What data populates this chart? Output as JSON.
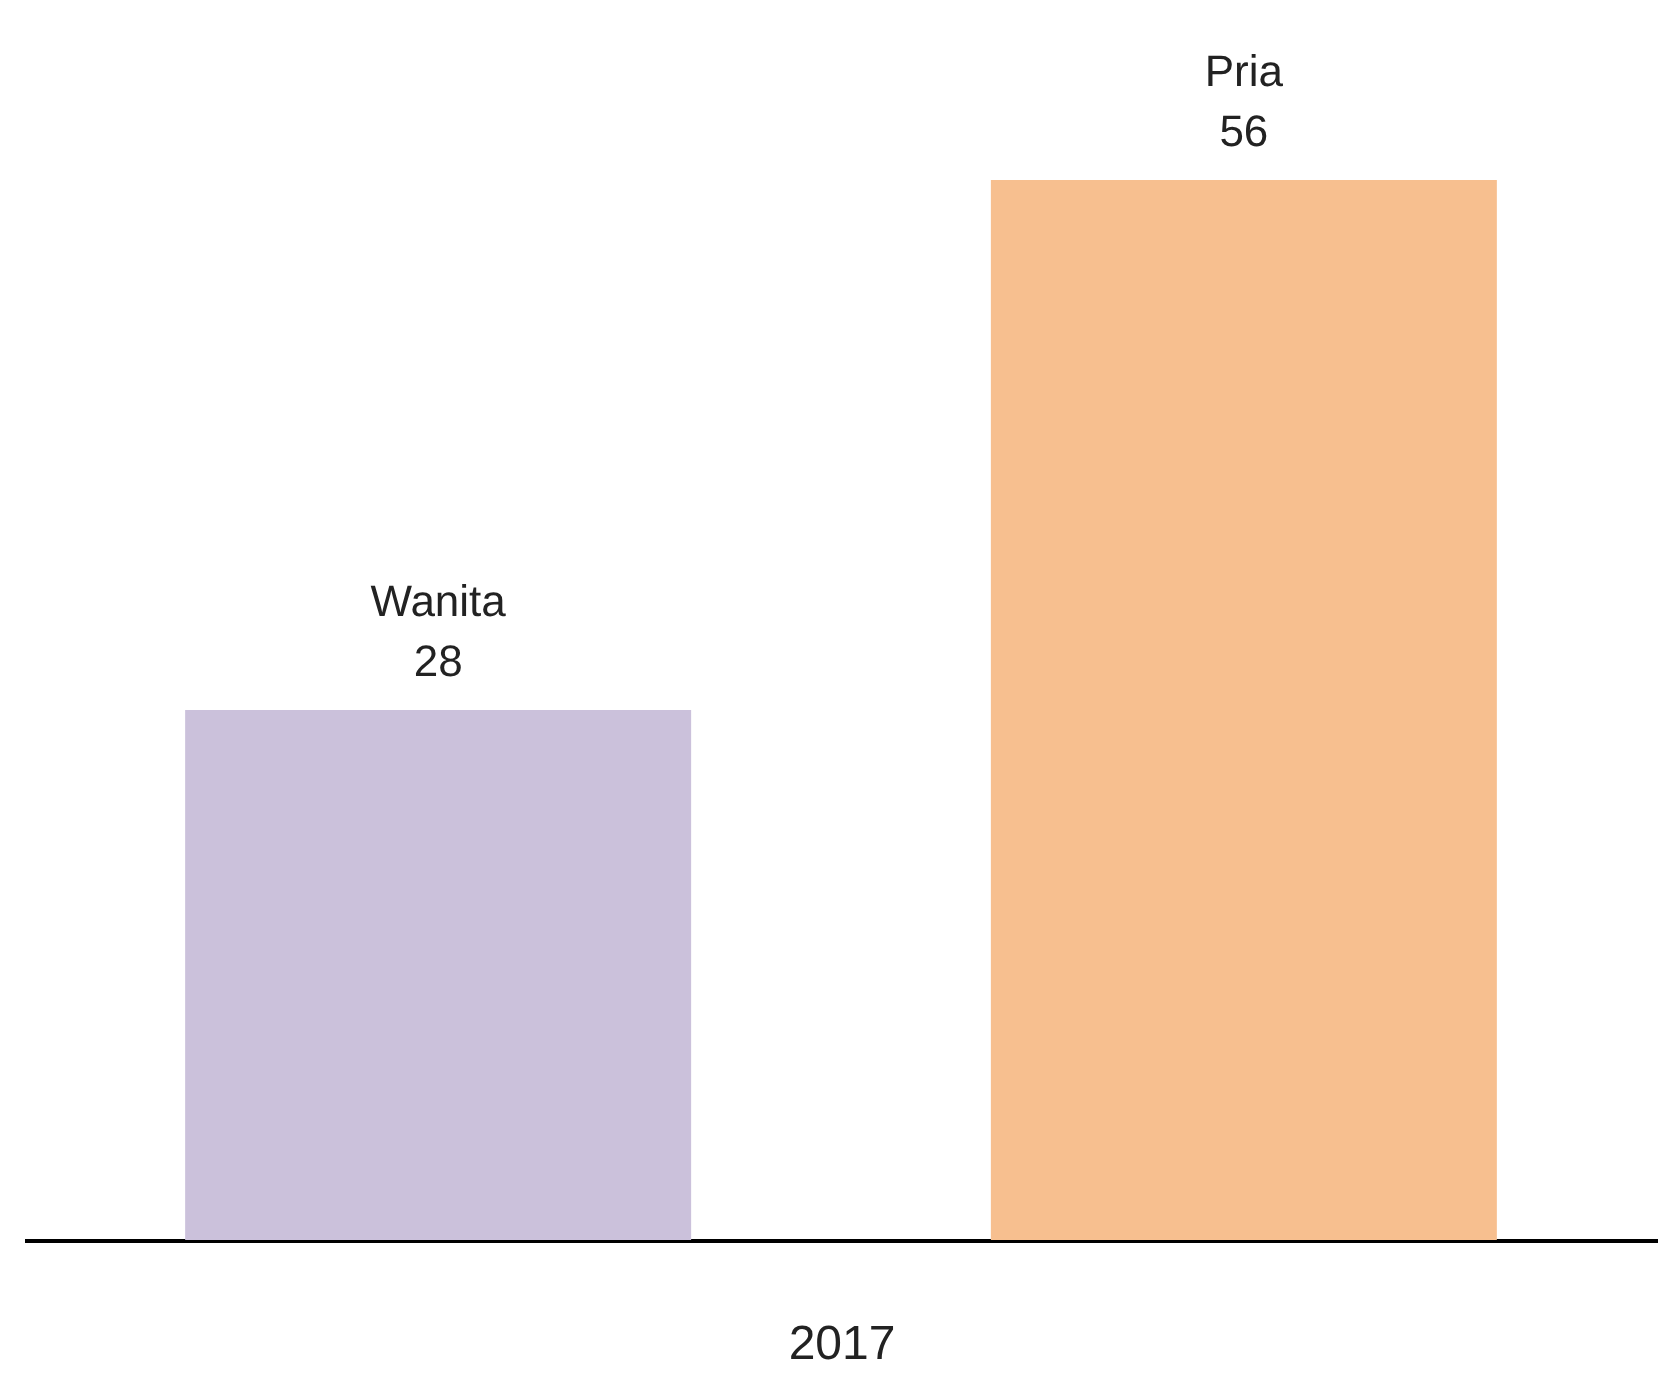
{
  "chart_data": {
    "type": "bar",
    "xlabel": "2017",
    "categories": [
      null,
      null
    ],
    "values": [
      28,
      56
    ],
    "colors": [
      "#cbc1db",
      "#f7bf8f"
    ],
    "annotations": [
      "Wanita",
      "Pria"
    ],
    "data_labels": true,
    "legend": false,
    "grid": false
  }
}
